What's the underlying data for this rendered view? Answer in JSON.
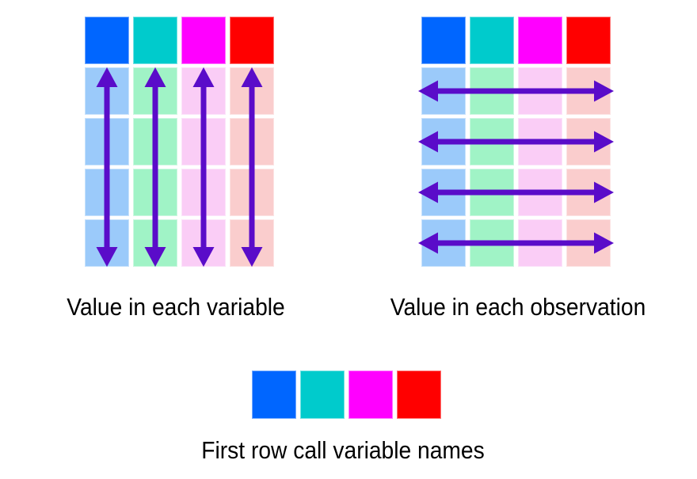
{
  "palette": {
    "header_colors": [
      "#0066FF",
      "#00CBCC",
      "#FF00FF",
      "#FF0000"
    ],
    "body_colors": [
      "#9BCAFA",
      "#A0F3C6",
      "#FACDF6",
      "#FACDCD"
    ],
    "arrow_color": "#5A0CC9",
    "label_color": "#000000",
    "background": "#FFFFFF"
  },
  "diagram": {
    "left_panel": {
      "label": "Value in each variable",
      "columns": 4,
      "body_rows": 4,
      "arrow_direction": "vertical",
      "arrow_count": 4
    },
    "right_panel": {
      "label": "Value in each observation",
      "columns": 4,
      "body_rows": 4,
      "arrow_direction": "horizontal",
      "arrow_count": 4
    },
    "bottom_panel": {
      "label": "First row call variable names",
      "columns": 4,
      "body_rows": 0,
      "arrow_direction": "none",
      "arrow_count": 0
    }
  }
}
